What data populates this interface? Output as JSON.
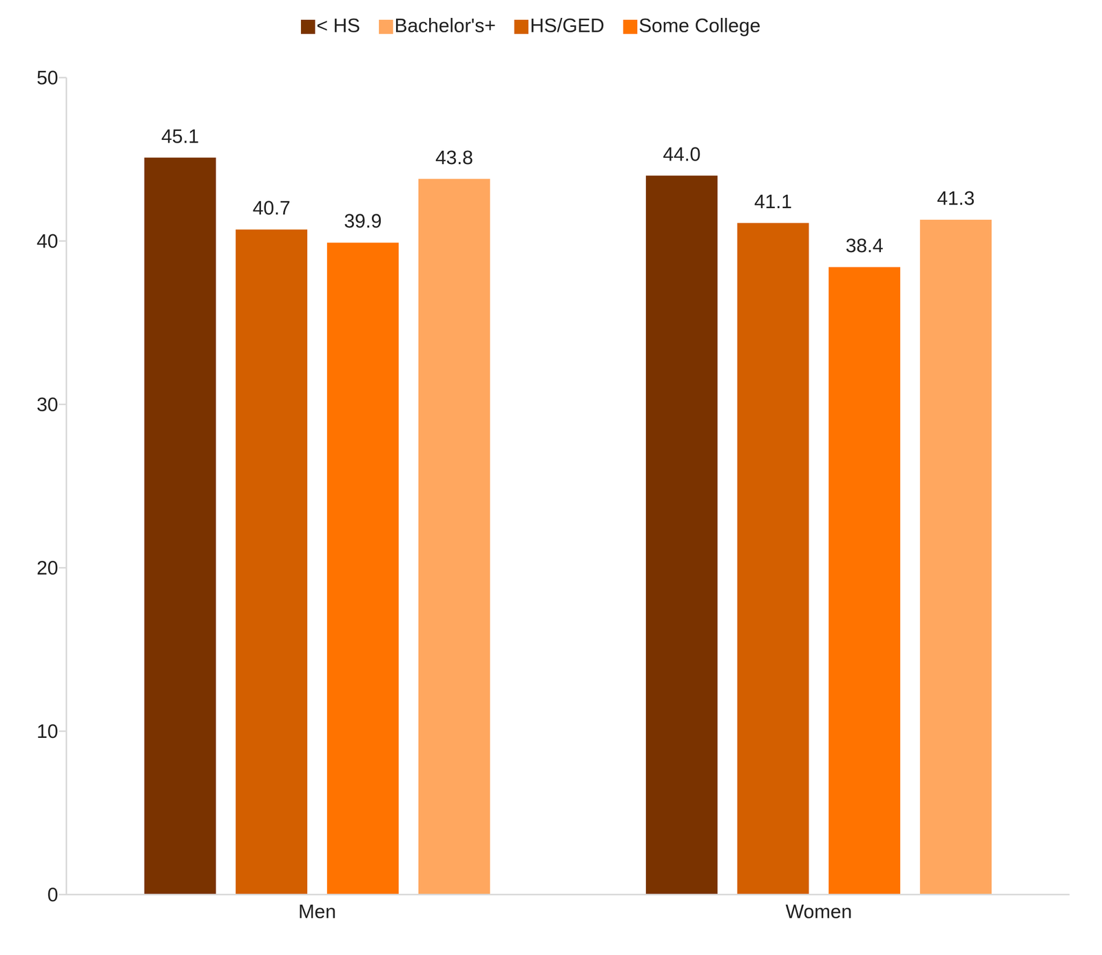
{
  "chart_data": {
    "type": "bar",
    "categories": [
      "Men",
      "Women"
    ],
    "series": [
      {
        "name": "< HS",
        "color": "#7a3300",
        "values": [
          45.1,
          44.0
        ],
        "value_labels": [
          "45.1",
          "44.0"
        ]
      },
      {
        "name": "HS/GED",
        "color": "#d35f00",
        "values": [
          40.7,
          41.1
        ],
        "value_labels": [
          "40.7",
          "41.1"
        ]
      },
      {
        "name": "Some College",
        "color": "#ff7300",
        "values": [
          39.9,
          38.4
        ],
        "value_labels": [
          "39.9",
          "38.4"
        ]
      },
      {
        "name": "Bachelor's+",
        "color": "#ffa75f",
        "values": [
          43.8,
          41.3
        ],
        "value_labels": [
          "43.8",
          "41.3"
        ]
      }
    ],
    "ylim": [
      0,
      50
    ],
    "yticks": [
      0,
      10,
      20,
      30,
      40,
      50
    ],
    "grid": false,
    "legend": "top",
    "data_labels": true
  }
}
